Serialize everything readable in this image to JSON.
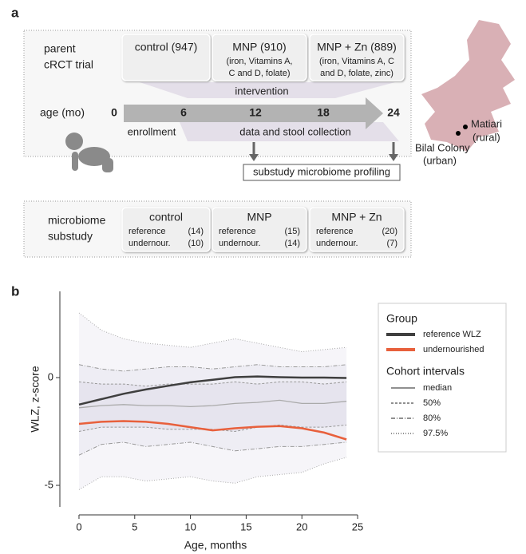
{
  "panel_a": {
    "label": "a",
    "trial_label": [
      "parent",
      "cRCT trial"
    ],
    "arms": [
      {
        "title": "control (947)"
      },
      {
        "title": "MNP (910)",
        "detail": [
          "(iron, Vitamins A,",
          "C and D, folate)"
        ]
      },
      {
        "title": "MNP + Zn (889)",
        "detail": [
          "(iron, Vitamins A, C",
          "and D, folate, zinc)"
        ]
      }
    ],
    "intervention": "intervention",
    "age_label": "age (mo)",
    "age_ticks": [
      "0",
      "6",
      "12",
      "18",
      "24"
    ],
    "enrollment": "enrollment",
    "collection": "data and stool collection",
    "profiling": "substudy microbiome profiling",
    "sites": [
      [
        "Matiari",
        "(rural)"
      ],
      [
        "Bilal Colony",
        "(urban)"
      ]
    ],
    "substudy_label": [
      "microbiome",
      "substudy"
    ],
    "groups": [
      {
        "title": "control",
        "rows": [
          [
            "reference",
            "(14)"
          ],
          [
            "undernour.",
            "(10)"
          ]
        ]
      },
      {
        "title": "MNP",
        "rows": [
          [
            "reference",
            "(15)"
          ],
          [
            "undernour.",
            "(14)"
          ]
        ]
      },
      {
        "title": "MNP + Zn",
        "rows": [
          [
            "reference",
            "(20)"
          ],
          [
            "undernour.",
            "(7)"
          ]
        ]
      }
    ]
  },
  "chart_data": {
    "type": "line",
    "label": "b",
    "xlabel": "Age, months",
    "ylabel": "WLZ, z-score",
    "x": [
      0,
      2,
      4,
      6,
      8,
      10,
      12,
      14,
      16,
      18,
      20,
      22,
      24
    ],
    "xlim": [
      -1,
      26
    ],
    "xticks": [
      0,
      5,
      10,
      15,
      20,
      25
    ],
    "ylim": [
      -6,
      4
    ],
    "yticks": [
      -5,
      0
    ],
    "legend_titles": [
      "Group",
      "Cohort intervals"
    ],
    "series": [
      {
        "name": "reference WLZ",
        "color": "#3f3f3f",
        "values": [
          -1.25,
          -1.0,
          -0.75,
          -0.55,
          -0.38,
          -0.22,
          -0.1,
          0.02,
          0.05,
          0.02,
          0.0,
          0.0,
          -0.02
        ]
      },
      {
        "name": "undernourished",
        "color": "#e8603c",
        "values": [
          -2.15,
          -2.05,
          -2.02,
          -2.05,
          -2.15,
          -2.3,
          -2.45,
          -2.35,
          -2.28,
          -2.25,
          -2.35,
          -2.55,
          -2.87
        ]
      }
    ],
    "median": {
      "name": "median",
      "color": "#aaaaaa",
      "values": [
        -1.4,
        -1.3,
        -1.25,
        -1.3,
        -1.3,
        -1.35,
        -1.3,
        -1.2,
        -1.15,
        -1.05,
        -1.2,
        -1.2,
        -1.1
      ]
    },
    "intervals": [
      {
        "name": "50%",
        "color": "#999999",
        "dash": "3,2",
        "lower": [
          -2.5,
          -2.3,
          -2.3,
          -2.3,
          -2.4,
          -2.4,
          -2.4,
          -2.5,
          -2.3,
          -2.2,
          -2.3,
          -2.3,
          -2.2
        ],
        "upper": [
          -0.2,
          -0.3,
          -0.3,
          -0.4,
          -0.3,
          -0.3,
          -0.3,
          -0.2,
          -0.3,
          -0.2,
          -0.2,
          -0.3,
          -0.2
        ]
      },
      {
        "name": "80%",
        "color": "#999999",
        "dash": "5,2,1,2",
        "lower": [
          -3.6,
          -3.1,
          -3.0,
          -3.2,
          -3.1,
          -3.0,
          -3.2,
          -3.4,
          -3.3,
          -3.2,
          -3.2,
          -3.1,
          -3.0
        ],
        "upper": [
          0.6,
          0.4,
          0.3,
          0.4,
          0.5,
          0.5,
          0.4,
          0.5,
          0.6,
          0.5,
          0.5,
          0.5,
          0.6
        ]
      },
      {
        "name": "97.5%",
        "color": "#aaaaaa",
        "dash": "1,2",
        "lower": [
          -5.2,
          -4.6,
          -4.6,
          -4.8,
          -4.7,
          -4.6,
          -4.8,
          -4.9,
          -4.6,
          -4.5,
          -4.4,
          -4.0,
          -3.7
        ],
        "upper": [
          3.0,
          2.2,
          1.8,
          1.6,
          1.5,
          1.4,
          1.6,
          1.8,
          1.6,
          1.4,
          1.2,
          1.3,
          1.4
        ]
      }
    ]
  }
}
